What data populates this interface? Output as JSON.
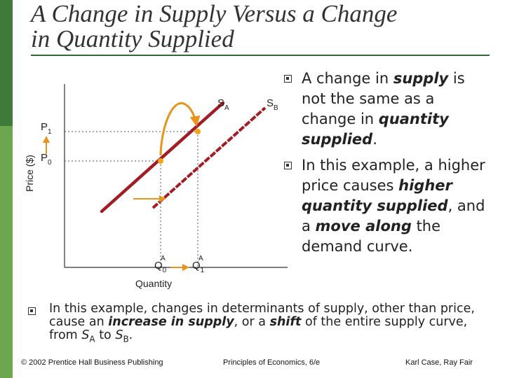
{
  "slide": {
    "title_line1": "A Change in Supply Versus a Change",
    "title_line2": "in Quantity Supplied"
  },
  "colors": {
    "supply_curve": "#a31c22",
    "marker": "#f2a515",
    "arrow": "#e8941a",
    "accent_dark": "#3e7a3a",
    "accent_light": "#6ca64f"
  },
  "diagram": {
    "y_axis_label": "Price ($)",
    "x_axis_label": "Quantity",
    "curve_a_label": "S",
    "curve_a_sub": "A",
    "curve_b_label": "S",
    "curve_b_sub": "B",
    "p1_label": "P",
    "p1_sub": "1",
    "p0_label": "P",
    "p0_sub": "0",
    "q0_label": "Q",
    "q0_sub": "0",
    "q0_sup": "A",
    "q1_label": "Q",
    "q1_sub": "1",
    "q1_sup": "A"
  },
  "bullets_right": [
    {
      "t1": "A change in ",
      "em1": "supply",
      "t2": " is not the same as a change in ",
      "em2": "quantity supplied",
      "t3": "."
    },
    {
      "t1": "In this example, a higher price causes ",
      "em1": "higher quantity supplied",
      "t2": ", and a ",
      "em2": "move along",
      "t3": " the demand curve."
    }
  ],
  "bottom_bullet": {
    "t1": "In this example, changes in determinants of supply, other than price, cause an ",
    "em1": "increase in supply",
    "t2": ", or a ",
    "em2": "shift",
    "t3": " of the entire supply curve, from ",
    "s1": "S",
    "s1_sub": "A",
    "t4": " to ",
    "s2": "S",
    "s2_sub": "B",
    "t5": "."
  },
  "footer": {
    "left": "© 2002 Prentice Hall Business Publishing",
    "center": "Principles of Economics, 6/e",
    "right": "Karl Case, Ray Fair"
  }
}
